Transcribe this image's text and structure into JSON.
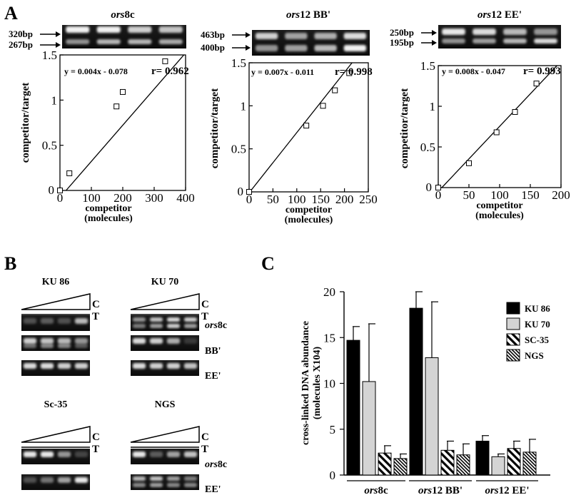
{
  "panel_labels": {
    "a": "A",
    "b": "B",
    "c": "C"
  },
  "calibration": {
    "ylabel": "competitor/target",
    "xlabel_line1": "competitor",
    "xlabel_line2": "(molecules)",
    "y_ticks": [
      "0",
      "0.5",
      "1",
      "1.5"
    ],
    "charts": [
      {
        "title_italic": "ors",
        "title_rest": "8c",
        "bands": [
          "320bp",
          "267bp"
        ],
        "equation": "y = 0.004x - 0.078",
        "r_text": "r= 0.962",
        "x_ticks": [
          "0",
          "100",
          "200",
          "300",
          "400"
        ],
        "xlim": [
          0,
          400
        ]
      },
      {
        "title_italic": "ors",
        "title_rest": "12 BB'",
        "bands": [
          "463bp",
          "400bp"
        ],
        "equation": "y = 0.007x - 0.011",
        "r_text": "r= 0.998",
        "x_ticks": [
          "0",
          "50",
          "100",
          "150",
          "200",
          "250"
        ],
        "xlim": [
          0,
          250
        ]
      },
      {
        "title_italic": "ors",
        "title_rest": "12 EE'",
        "bands": [
          "250bp",
          "195bp"
        ],
        "equation": "y = 0.008x - 0.047",
        "r_text": "r= 0.993",
        "x_ticks": [
          "0",
          "50",
          "100",
          "150",
          "200"
        ],
        "xlim": [
          0,
          200
        ]
      }
    ]
  },
  "gels_b": {
    "groups": [
      {
        "title": "KU 86",
        "rows": [
          "ors8c",
          "BB'",
          "EE'"
        ]
      },
      {
        "title": "KU 70",
        "rows": [
          "ors8c",
          "BB'",
          "EE'"
        ]
      },
      {
        "title": "Sc-35",
        "rows": [
          "ors8c",
          "EE'"
        ]
      },
      {
        "title": "NGS",
        "rows": [
          "ors8c",
          "EE'"
        ]
      }
    ],
    "c_label": "C",
    "t_label": "T",
    "row_labels": {
      "ors8c_italic": "ors",
      "ors8c_rest": "8c",
      "bb": "BB'",
      "ee": "EE'"
    }
  },
  "chart_data": [
    {
      "type": "scatter",
      "title": "ors8c",
      "xlabel": "competitor (molecules)",
      "ylabel": "competitor/target",
      "xlim": [
        0,
        400
      ],
      "ylim": [
        0,
        1.5
      ],
      "x": [
        0,
        30,
        180,
        200,
        335
      ],
      "y": [
        0,
        0.19,
        0.93,
        1.09,
        1.43
      ],
      "fit": {
        "slope": 0.004,
        "intercept": -0.078,
        "r": 0.962
      }
    },
    {
      "type": "scatter",
      "title": "ors12 BB'",
      "xlabel": "competitor (molecules)",
      "ylabel": "competitor/target",
      "xlim": [
        0,
        250
      ],
      "ylim": [
        0,
        1.5
      ],
      "x": [
        0,
        120,
        155,
        180,
        210
      ],
      "y": [
        0,
        0.77,
        1.0,
        1.18,
        1.38
      ],
      "fit": {
        "slope": 0.007,
        "intercept": -0.011,
        "r": 0.998
      }
    },
    {
      "type": "scatter",
      "title": "ors12 EE'",
      "xlabel": "competitor (molecules)",
      "ylabel": "competitor/target",
      "xlim": [
        0,
        200
      ],
      "ylim": [
        0,
        1.5
      ],
      "x": [
        0,
        50,
        95,
        125,
        160
      ],
      "y": [
        0,
        0.3,
        0.68,
        0.93,
        1.28
      ],
      "fit": {
        "slope": 0.008,
        "intercept": -0.047,
        "r": 0.993
      }
    },
    {
      "type": "bar",
      "ylabel_line1": "cross-linked DNA abundance",
      "ylabel_line2": "(molecules X104)",
      "ylim": [
        0,
        20
      ],
      "y_ticks": [
        "0",
        "5",
        "10",
        "15",
        "20"
      ],
      "categories": [
        {
          "italic": "ors",
          "rest": "8c"
        },
        {
          "italic": "ors",
          "rest": "12 BB'"
        },
        {
          "italic": "ors",
          "rest": "12 EE'"
        }
      ],
      "series": [
        {
          "name": "KU 86",
          "values": [
            14.7,
            18.2,
            3.7
          ],
          "errors": [
            1.5,
            1.8,
            0.6
          ],
          "color": "#000000",
          "pattern": "solid"
        },
        {
          "name": "KU 70",
          "values": [
            10.2,
            12.8,
            2.0
          ],
          "errors": [
            6.3,
            6.1,
            0.3
          ],
          "color": "#d4d4d4",
          "pattern": "solid"
        },
        {
          "name": "SC-35",
          "values": [
            2.4,
            2.7,
            2.9
          ],
          "errors": [
            0.8,
            1.0,
            0.8
          ],
          "color": "#000000",
          "pattern": "wide-hatch"
        },
        {
          "name": "NGS",
          "values": [
            1.8,
            2.2,
            2.5
          ],
          "errors": [
            0.5,
            1.2,
            1.4
          ],
          "color": "#000000",
          "pattern": "fine-hatch"
        }
      ]
    }
  ]
}
